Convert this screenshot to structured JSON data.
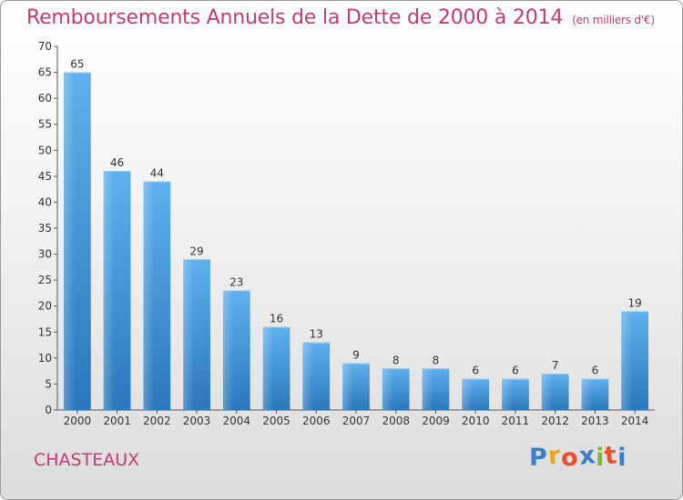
{
  "chart_data": {
    "type": "bar",
    "title": "Remboursements Annuels de la Dette de 2000 à 2014",
    "subtitle": "(en milliers d'€)",
    "categories": [
      "2000",
      "2001",
      "2002",
      "2003",
      "2004",
      "2005",
      "2006",
      "2007",
      "2008",
      "2009",
      "2010",
      "2011",
      "2012",
      "2013",
      "2014"
    ],
    "values": [
      65,
      46,
      44,
      29,
      23,
      16,
      13,
      9,
      8,
      8,
      6,
      6,
      7,
      6,
      19
    ],
    "ylim": [
      0,
      70
    ],
    "yticks": [
      0,
      5,
      10,
      15,
      20,
      25,
      30,
      35,
      40,
      45,
      50,
      55,
      60,
      65,
      70
    ],
    "grid": false,
    "bar_color": "#3d8fd1"
  },
  "town": "CHASTEAUX",
  "logo": {
    "letters": [
      "P",
      "r",
      "o",
      "x",
      "i",
      "t",
      "i"
    ],
    "colors": [
      "#3a7fc8",
      "#f2a31c",
      "#e8502f",
      "#3a7fc8",
      "#79b83a",
      "#e8502f",
      "#3a7fc8"
    ]
  }
}
